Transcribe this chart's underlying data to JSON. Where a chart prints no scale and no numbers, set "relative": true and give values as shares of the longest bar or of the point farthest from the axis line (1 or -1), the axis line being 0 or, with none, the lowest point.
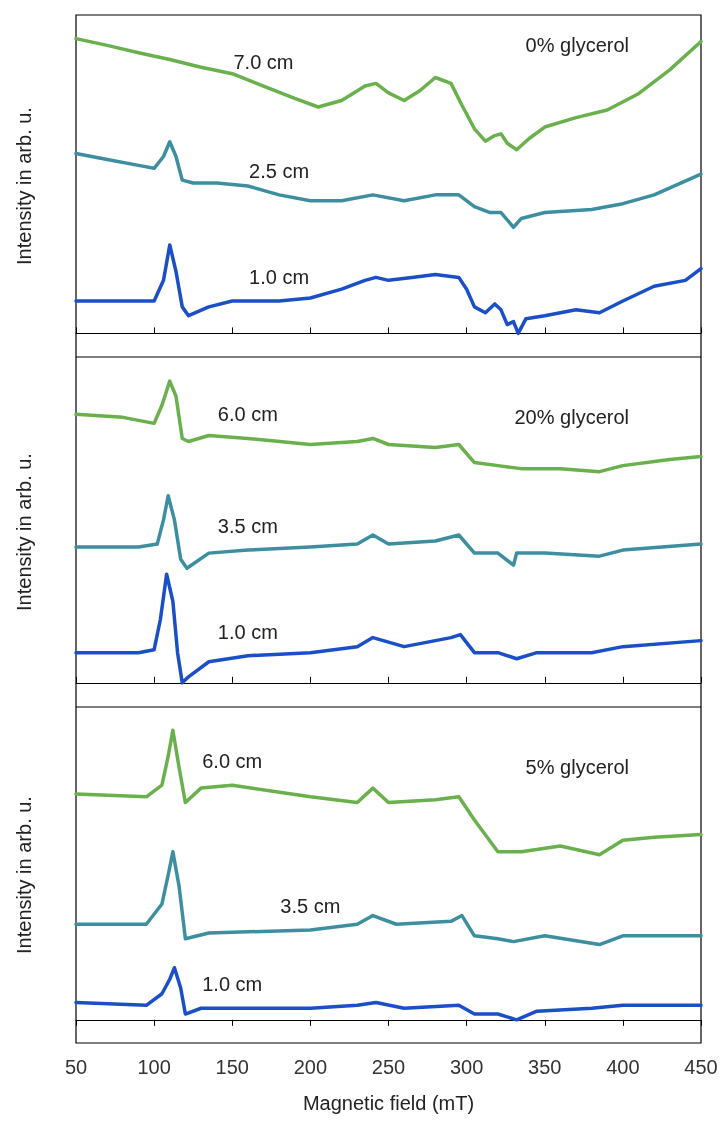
{
  "chart_data": [
    {
      "type": "line",
      "relative": true,
      "ylabel": "Intensity in arb. u.",
      "annotations": [
        "0% glycerol"
      ],
      "xlim": [
        50,
        450
      ],
      "xticks": [
        50,
        100,
        150,
        200,
        250,
        300,
        350,
        400,
        450
      ],
      "tick_labels": false,
      "legend": false,
      "grid": false,
      "series": [
        {
          "name": "7.0 cm",
          "color": "#6ab04c",
          "x": [
            50,
            70,
            90,
            110,
            130,
            150,
            170,
            190,
            205,
            220,
            235,
            242,
            250,
            260,
            270,
            280,
            290,
            297,
            305,
            312,
            318,
            322,
            326,
            332,
            340,
            350,
            370,
            390,
            410,
            430,
            450
          ],
          "values": [
            1.0,
            0.977,
            0.952,
            0.929,
            0.903,
            0.881,
            0.839,
            0.797,
            0.768,
            0.79,
            0.839,
            0.848,
            0.816,
            0.79,
            0.823,
            0.868,
            0.848,
            0.774,
            0.694,
            0.652,
            0.671,
            0.677,
            0.645,
            0.623,
            0.661,
            0.7,
            0.732,
            0.758,
            0.813,
            0.894,
            0.99
          ]
        },
        {
          "name": "2.5 cm",
          "color": "#3d8fa0",
          "x": [
            50,
            70,
            90,
            100,
            106,
            110,
            114,
            118,
            125,
            140,
            160,
            180,
            200,
            220,
            240,
            260,
            280,
            295,
            305,
            315,
            322,
            330,
            335,
            350,
            380,
            400,
            420,
            450
          ],
          "values": [
            0.61,
            0.59,
            0.57,
            0.56,
            0.6,
            0.65,
            0.6,
            0.52,
            0.51,
            0.51,
            0.5,
            0.47,
            0.45,
            0.45,
            0.47,
            0.45,
            0.47,
            0.47,
            0.43,
            0.41,
            0.41,
            0.36,
            0.39,
            0.41,
            0.42,
            0.44,
            0.47,
            0.54
          ]
        },
        {
          "name": "1.0 cm",
          "color": "#1a4fc8",
          "x": [
            50,
            80,
            100,
            106,
            110,
            114,
            118,
            122,
            135,
            150,
            180,
            200,
            220,
            235,
            242,
            250,
            265,
            280,
            295,
            300,
            305,
            312,
            318,
            322,
            326,
            330,
            333,
            338,
            350,
            370,
            385,
            400,
            420,
            440,
            450
          ],
          "values": [
            0.11,
            0.11,
            0.11,
            0.18,
            0.3,
            0.21,
            0.09,
            0.06,
            0.09,
            0.11,
            0.11,
            0.12,
            0.15,
            0.18,
            0.19,
            0.18,
            0.19,
            0.2,
            0.19,
            0.15,
            0.09,
            0.07,
            0.1,
            0.08,
            0.03,
            0.04,
            0,
            0.05,
            0.06,
            0.08,
            0.07,
            0.11,
            0.16,
            0.18,
            0.22
          ]
        }
      ]
    },
    {
      "type": "line",
      "relative": true,
      "ylabel": "Intensity in arb. u.",
      "annotations": [
        "20% glycerol"
      ],
      "xlim": [
        50,
        450
      ],
      "xticks": [
        50,
        100,
        150,
        200,
        250,
        300,
        350,
        400,
        450
      ],
      "tick_labels": false,
      "legend": false,
      "grid": false,
      "series": [
        {
          "name": "6.0 cm",
          "color": "#6ab04c",
          "x": [
            50,
            80,
            100,
            105,
            110,
            114,
            118,
            122,
            135,
            160,
            200,
            230,
            240,
            250,
            280,
            295,
            305,
            320,
            335,
            360,
            385,
            400,
            430,
            450
          ],
          "values": [
            0.89,
            0.88,
            0.86,
            0.92,
            1.0,
            0.95,
            0.81,
            0.8,
            0.82,
            0.81,
            0.79,
            0.8,
            0.81,
            0.79,
            0.78,
            0.79,
            0.73,
            0.72,
            0.71,
            0.71,
            0.7,
            0.72,
            0.74,
            0.75
          ]
        },
        {
          "name": "3.5 cm",
          "color": "#3d8fa0",
          "x": [
            50,
            90,
            102,
            106,
            109,
            113,
            117,
            121,
            135,
            160,
            200,
            230,
            240,
            250,
            280,
            295,
            305,
            320,
            330,
            332,
            350,
            385,
            400,
            450
          ],
          "values": [
            0.45,
            0.45,
            0.46,
            0.54,
            0.62,
            0.54,
            0.41,
            0.38,
            0.43,
            0.44,
            0.45,
            0.46,
            0.49,
            0.46,
            0.47,
            0.49,
            0.43,
            0.43,
            0.39,
            0.43,
            0.43,
            0.42,
            0.44,
            0.46
          ]
        },
        {
          "name": "1.0 cm",
          "color": "#1a4fc8",
          "x": [
            50,
            90,
            100,
            104,
            108,
            112,
            115,
            118,
            122,
            135,
            160,
            200,
            230,
            240,
            260,
            290,
            296,
            305,
            320,
            332,
            345,
            380,
            400,
            450
          ],
          "values": [
            0.1,
            0.1,
            0.11,
            0.21,
            0.36,
            0.27,
            0.1,
            0,
            0.02,
            0.07,
            0.09,
            0.1,
            0.12,
            0.15,
            0.12,
            0.15,
            0.16,
            0.1,
            0.1,
            0.08,
            0.1,
            0.1,
            0.12,
            0.14
          ]
        }
      ]
    },
    {
      "type": "line",
      "relative": true,
      "xlabel": "Magnetic field (mT)",
      "ylabel": "Intensity in arb. u.",
      "annotations": [
        "5% glycerol"
      ],
      "xlim": [
        50,
        450
      ],
      "xticks": [
        50,
        100,
        150,
        200,
        250,
        300,
        350,
        400,
        450
      ],
      "tick_labels": "x",
      "legend": false,
      "grid": false,
      "series": [
        {
          "name": "6.0 cm",
          "color": "#6ab04c",
          "x": [
            50,
            95,
            105,
            109,
            112,
            116,
            120,
            130,
            150,
            200,
            230,
            240,
            250,
            280,
            295,
            305,
            320,
            335,
            360,
            385,
            400,
            420,
            450
          ],
          "values": [
            0.78,
            0.77,
            0.81,
            0.91,
            1.0,
            0.87,
            0.75,
            0.8,
            0.81,
            0.77,
            0.75,
            0.8,
            0.75,
            0.76,
            0.77,
            0.69,
            0.58,
            0.58,
            0.6,
            0.57,
            0.62,
            0.63,
            0.64
          ]
        },
        {
          "name": "3.5 cm",
          "color": "#3d8fa0",
          "x": [
            50,
            95,
            105,
            109,
            112,
            116,
            120,
            135,
            200,
            230,
            240,
            255,
            290,
            297,
            305,
            320,
            330,
            350,
            385,
            400,
            450
          ],
          "values": [
            0.33,
            0.33,
            0.4,
            0.5,
            0.58,
            0.46,
            0.28,
            0.3,
            0.31,
            0.33,
            0.36,
            0.33,
            0.34,
            0.36,
            0.29,
            0.28,
            0.27,
            0.29,
            0.26,
            0.29,
            0.29
          ]
        },
        {
          "name": "1.0 cm",
          "color": "#1a4fc8",
          "x": [
            50,
            95,
            105,
            110,
            113,
            117,
            120,
            130,
            150,
            200,
            230,
            242,
            260,
            295,
            305,
            320,
            332,
            345,
            380,
            400,
            450
          ],
          "values": [
            0.06,
            0.05,
            0.09,
            0.14,
            0.18,
            0.11,
            0.02,
            0.04,
            0.04,
            0.04,
            0.05,
            0.06,
            0.04,
            0.05,
            0.02,
            0.02,
            0,
            0.03,
            0.04,
            0.05,
            0.05
          ]
        }
      ]
    }
  ]
}
